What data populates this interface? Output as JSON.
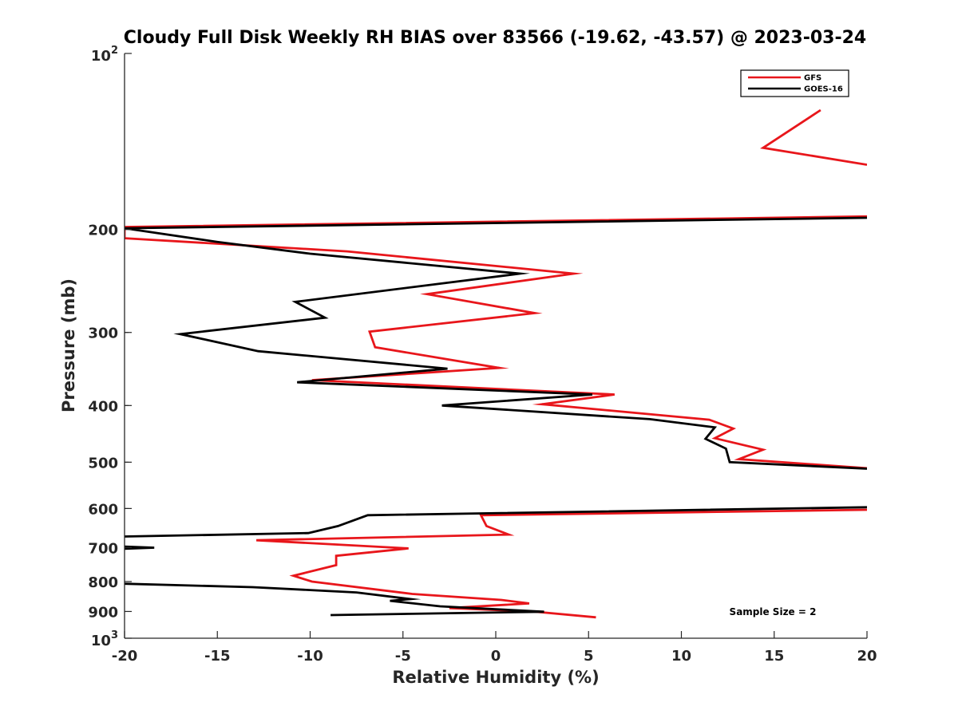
{
  "chart_data": {
    "type": "line",
    "title": "Cloudy Full Disk Weekly RH BIAS over 83566 (-19.62, -43.57) @ 2023-03-24",
    "xlabel": "Relative Humidity (%)",
    "ylabel": "Pressure (mb)",
    "xlim": [
      -20,
      20
    ],
    "ylim": [
      100,
      1000
    ],
    "y_scale": "log",
    "y_reversed": true,
    "grid": false,
    "legend_position": "top-right",
    "x_ticks": [
      "-20",
      "-15",
      "-10",
      "-5",
      "0",
      "5",
      "10",
      "15",
      "20"
    ],
    "y_ticks": [
      {
        "value": 100,
        "base": "10",
        "exp": "2"
      },
      {
        "value": 200,
        "label": "200"
      },
      {
        "value": 300,
        "label": "300"
      },
      {
        "value": 400,
        "label": "400"
      },
      {
        "value": 500,
        "label": "500"
      },
      {
        "value": 600,
        "label": "600"
      },
      {
        "value": 700,
        "label": "700"
      },
      {
        "value": 800,
        "label": "800"
      },
      {
        "value": 900,
        "label": "900"
      },
      {
        "value": 1000,
        "base": "10",
        "exp": "3"
      }
    ],
    "series": [
      {
        "name": "GFS",
        "color": "#e8161b",
        "points": [
          [
            17.5,
            125
          ],
          [
            14.4,
            145
          ],
          [
            20.0,
            155
          ],
          [
            null,
            null
          ],
          [
            20.0,
            190
          ],
          [
            -20.0,
            198
          ],
          [
            -20.0,
            207
          ],
          [
            -8.0,
            218
          ],
          [
            4.2,
            238
          ],
          [
            -3.7,
            258
          ],
          [
            2.1,
            278
          ],
          [
            -6.8,
            299
          ],
          [
            -6.5,
            318
          ],
          [
            0.2,
            345
          ],
          [
            -9.9,
            362
          ],
          [
            6.4,
            383
          ],
          [
            2.5,
            398
          ],
          [
            11.5,
            423
          ],
          [
            12.8,
            438
          ],
          [
            11.8,
            455
          ],
          [
            14.4,
            476
          ],
          [
            13.1,
            494
          ],
          [
            20.0,
            512
          ],
          [
            null,
            null
          ],
          [
            20.0,
            603
          ],
          [
            -0.8,
            616
          ],
          [
            -0.5,
            643
          ],
          [
            0.7,
            665
          ],
          [
            -12.9,
            680
          ],
          [
            -4.7,
            702
          ],
          [
            -8.6,
            723
          ],
          [
            -8.6,
            750
          ],
          [
            -10.9,
            782
          ],
          [
            -9.9,
            800
          ],
          [
            -4.5,
            840
          ],
          [
            0.3,
            860
          ],
          [
            1.8,
            872
          ],
          [
            -2.5,
            888
          ],
          [
            2.0,
            900
          ],
          [
            5.4,
            921
          ]
        ]
      },
      {
        "name": "GOES-16",
        "color": "#000000",
        "points": [
          [
            20.0,
            191
          ],
          [
            -20.0,
            199
          ],
          [
            -15.0,
            210
          ],
          [
            -10.0,
            220
          ],
          [
            1.3,
            238
          ],
          [
            -10.8,
            266
          ],
          [
            -9.2,
            283
          ],
          [
            -17.0,
            302
          ],
          [
            -12.8,
            323
          ],
          [
            -2.6,
            346
          ],
          [
            -10.7,
            365
          ],
          [
            5.2,
            383
          ],
          [
            -2.9,
            400
          ],
          [
            8.3,
            422
          ],
          [
            11.8,
            436
          ],
          [
            11.3,
            456
          ],
          [
            12.4,
            474
          ],
          [
            12.6,
            500
          ],
          [
            20.0,
            513
          ],
          [
            null,
            null
          ],
          [
            20.0,
            597
          ],
          [
            -6.9,
            616
          ],
          [
            -8.5,
            643
          ],
          [
            -10.1,
            661
          ],
          [
            -20.0,
            670
          ],
          [
            null,
            null
          ],
          [
            -20.0,
            697
          ],
          [
            -18.4,
            700
          ],
          [
            -20.0,
            703
          ],
          [
            null,
            null
          ],
          [
            -20.0,
            807
          ],
          [
            -13.1,
            818
          ],
          [
            -7.5,
            835
          ],
          [
            -4.6,
            857
          ],
          [
            -5.7,
            863
          ],
          [
            -3.0,
            882
          ],
          [
            2.6,
            901
          ],
          [
            -8.9,
            913
          ]
        ]
      }
    ],
    "annotation": "Sample Size = 2"
  }
}
